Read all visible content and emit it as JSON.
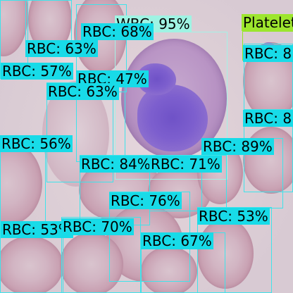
{
  "image": {
    "description_colors": {
      "rbc_box": "#3fe3ea",
      "rbc_tag": "#18dbe8",
      "wbc_box": "#a4f2e6",
      "wbc_tag": "#9ff3e3",
      "platelet_box": "#94e62a",
      "platelet_tag": "#9de62e"
    }
  },
  "detections": [
    {
      "id": "wbc",
      "label": "WBC: 95%"
    },
    {
      "id": "platelet",
      "label": "Platelets"
    },
    {
      "id": "rbc1",
      "label": "RBC: 68%"
    },
    {
      "id": "rbc2",
      "label": "RBC: 63%"
    },
    {
      "id": "rbc3",
      "label": "RBC: 57%"
    },
    {
      "id": "rbc4",
      "label": "RBC: 47%"
    },
    {
      "id": "rbc5",
      "label": "RBC: 63%"
    },
    {
      "id": "rbc6",
      "label": "RBC: 8"
    },
    {
      "id": "rbc7",
      "label": "RBC: 8"
    },
    {
      "id": "rbc8",
      "label": "RBC: 56%"
    },
    {
      "id": "rbc9",
      "label": "RBC: 89%"
    },
    {
      "id": "rbc10",
      "label": "RBC: 84%"
    },
    {
      "id": "rbc11",
      "label": "RBC: 71%"
    },
    {
      "id": "rbc12",
      "label": "RBC: 76%"
    },
    {
      "id": "rbc13",
      "label": "RBC: 53%"
    },
    {
      "id": "rbc14",
      "label": "RBC: 53%"
    },
    {
      "id": "rbc15",
      "label": "RBC: 70%"
    },
    {
      "id": "rbc16",
      "label": "RBC: 67%"
    }
  ]
}
